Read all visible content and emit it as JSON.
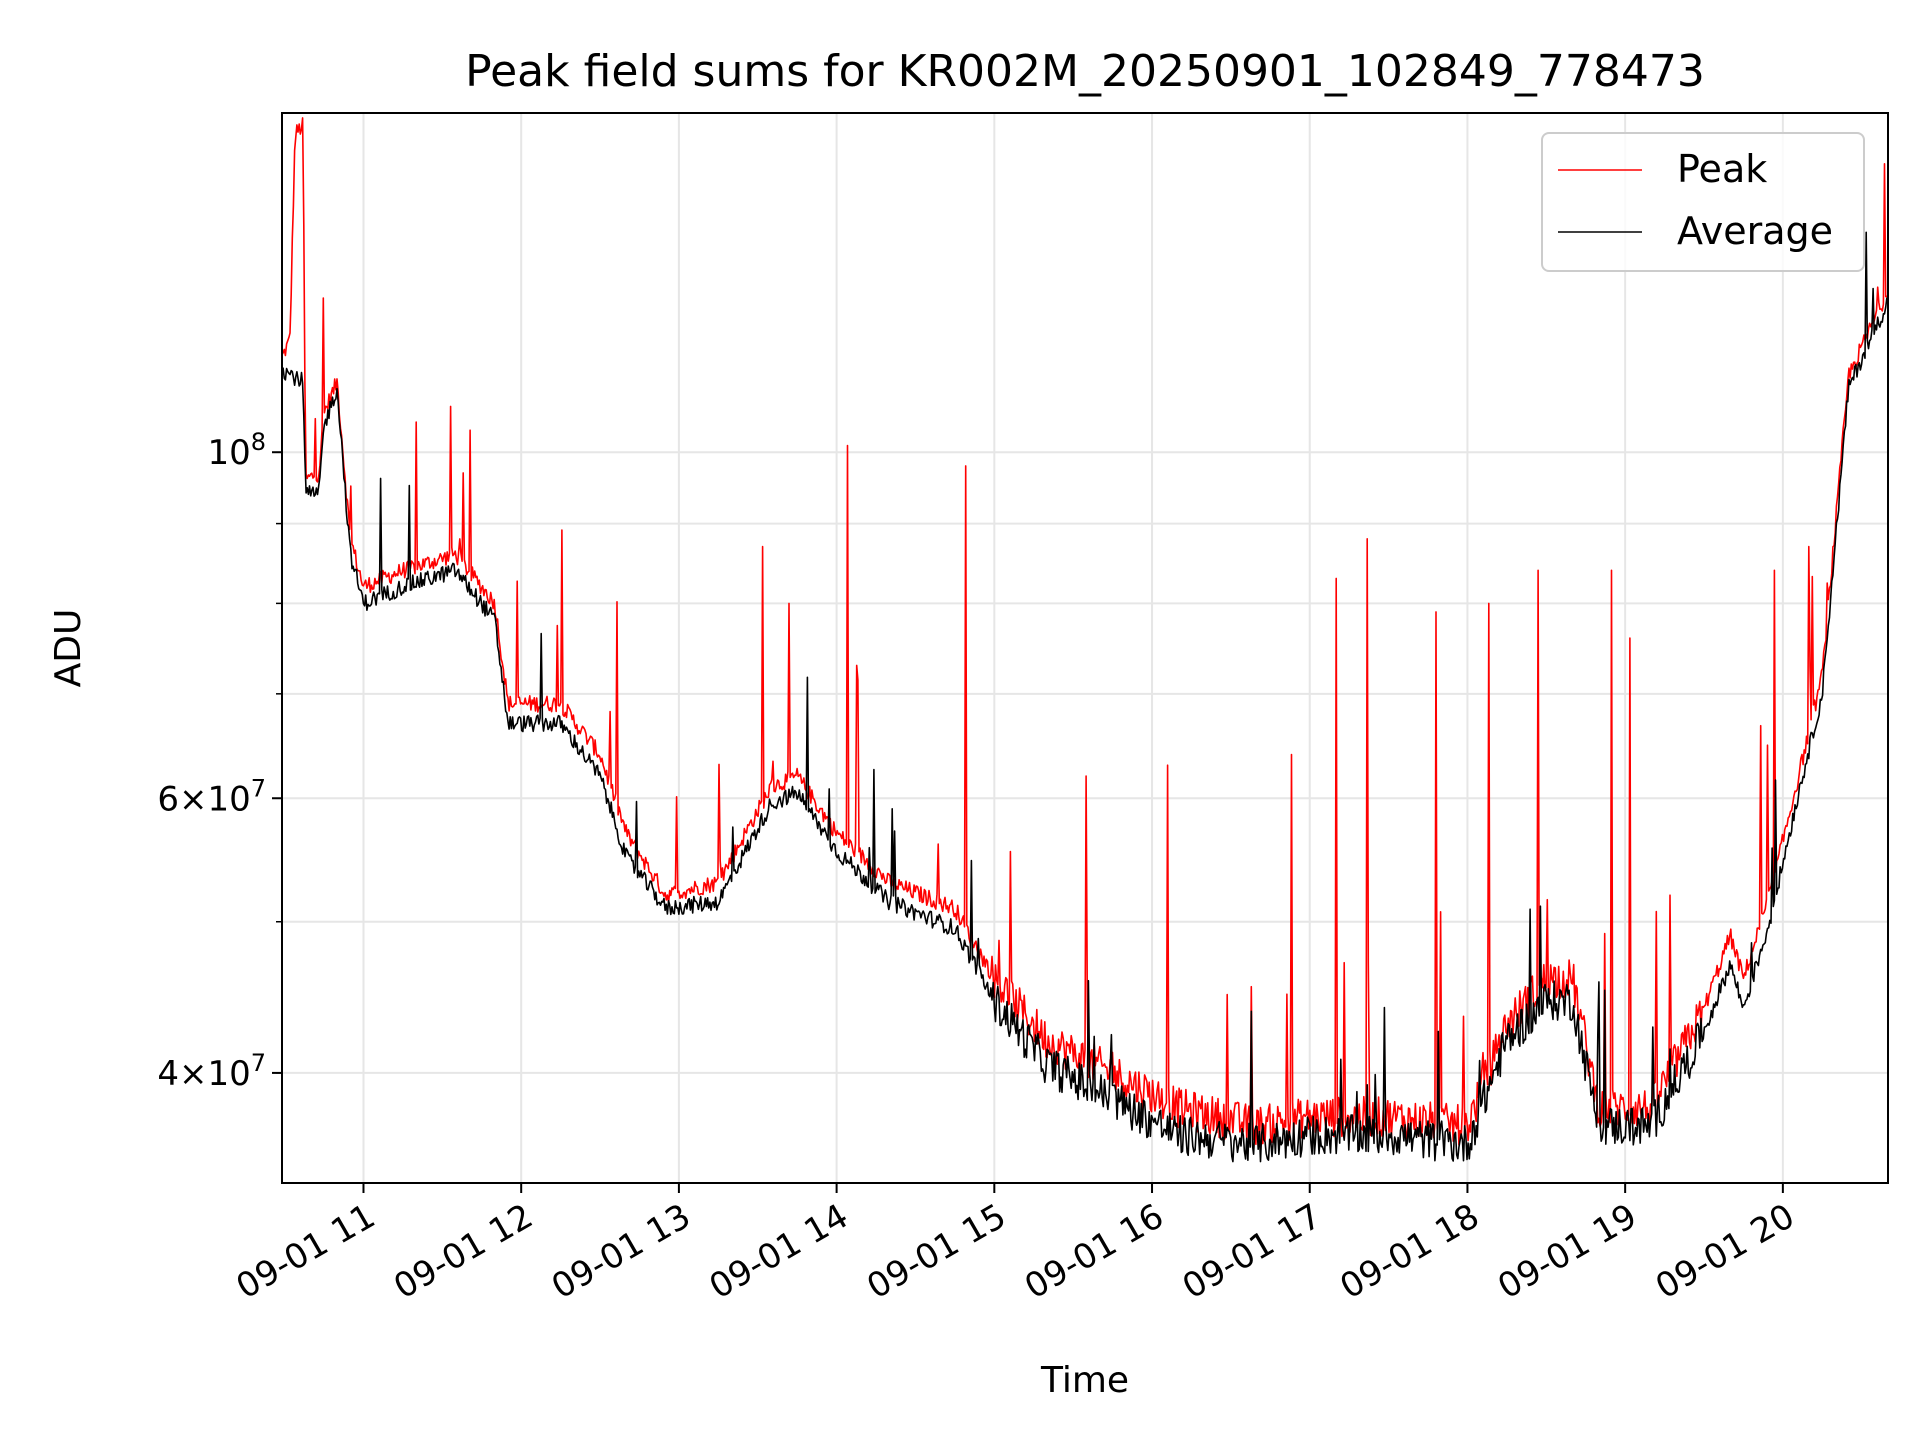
{
  "chart_data": {
    "type": "line",
    "title": "Peak field sums for KR002M_20250901_102849_778473",
    "xlabel": "Time",
    "ylabel": "ADU",
    "yscale": "log",
    "ylim": [
      34000000,
      165000000
    ],
    "xlim": [
      "2025-09-01 10:29:00",
      "2025-09-01 20:40:00"
    ],
    "x_ticks": [
      "09-01 11",
      "09-01 12",
      "09-01 13",
      "09-01 14",
      "09-01 15",
      "09-01 16",
      "09-01 17",
      "09-01 18",
      "09-01 19",
      "09-01 20"
    ],
    "y_ticks": [
      {
        "value": 40000000,
        "mantissa": "4",
        "exponent": "7"
      },
      {
        "value": 60000000,
        "mantissa": "6",
        "exponent": "7"
      },
      {
        "value": 100000000,
        "mantissa": "",
        "exponent": "8"
      }
    ],
    "grid": true,
    "legend_position": "top-right",
    "series": [
      {
        "name": "Peak",
        "color": "#ff0000",
        "points": [
          [
            "2025-09-01 10:29:00",
            115000000
          ],
          [
            "2025-09-01 10:32:00",
            118000000
          ],
          [
            "2025-09-01 10:34:00",
            160000000
          ],
          [
            "2025-09-01 10:37:00",
            162000000
          ],
          [
            "2025-09-01 10:38:00",
            96000000
          ],
          [
            "2025-09-01 10:43:00",
            97000000
          ],
          [
            "2025-09-01 10:45:00",
            106000000
          ],
          [
            "2025-09-01 10:50:00",
            111000000
          ],
          [
            "2025-09-01 10:55:00",
            88000000
          ],
          [
            "2025-09-01 11:00:00",
            82000000
          ],
          [
            "2025-09-01 11:15:00",
            84000000
          ],
          [
            "2025-09-01 11:35:00",
            86000000
          ],
          [
            "2025-09-01 11:50:00",
            80000000
          ],
          [
            "2025-09-01 11:55:00",
            69000000
          ],
          [
            "2025-09-01 12:15:00",
            69000000
          ],
          [
            "2025-09-01 12:30:00",
            64000000
          ],
          [
            "2025-09-01 12:40:00",
            57000000
          ],
          [
            "2025-09-01 12:55:00",
            52000000
          ],
          [
            "2025-09-01 13:15:00",
            53000000
          ],
          [
            "2025-09-01 13:35:00",
            61000000
          ],
          [
            "2025-09-01 13:45:00",
            62000000
          ],
          [
            "2025-09-01 14:00:00",
            57000000
          ],
          [
            "2025-09-01 14:20:00",
            53000000
          ],
          [
            "2025-09-01 14:45:00",
            51000000
          ],
          [
            "2025-09-01 15:00:00",
            46000000
          ],
          [
            "2025-09-01 15:20:00",
            42000000
          ],
          [
            "2025-09-01 15:45:00",
            40000000
          ],
          [
            "2025-09-01 16:10:00",
            38000000
          ],
          [
            "2025-09-01 16:40:00",
            37000000
          ],
          [
            "2025-09-01 17:00:00",
            37500000
          ],
          [
            "2025-09-01 17:30:00",
            37500000
          ],
          [
            "2025-09-01 18:00:00",
            37000000
          ],
          [
            "2025-09-01 18:15:00",
            43000000
          ],
          [
            "2025-09-01 18:30:00",
            46000000
          ],
          [
            "2025-09-01 18:40:00",
            46000000
          ],
          [
            "2025-09-01 18:50:00",
            38000000
          ],
          [
            "2025-09-01 19:10:00",
            38000000
          ],
          [
            "2025-09-01 19:30:00",
            44000000
          ],
          [
            "2025-09-01 19:40:00",
            49000000
          ],
          [
            "2025-09-01 19:45:00",
            46000000
          ],
          [
            "2025-09-01 19:55:00",
            52000000
          ],
          [
            "2025-09-01 20:05:00",
            61000000
          ],
          [
            "2025-09-01 20:15:00",
            72000000
          ],
          [
            "2025-09-01 20:25:00",
            112000000
          ],
          [
            "2025-09-01 20:40:00",
            127000000
          ]
        ],
        "spikes": [
          [
            "2025-09-01 11:33:00",
            107000000
          ],
          [
            "2025-09-01 11:38:00",
            97000000
          ],
          [
            "2025-09-01 13:32:00",
            87000000
          ],
          [
            "2025-09-01 13:42:00",
            80000000
          ],
          [
            "2025-09-01 14:04:00",
            101000000
          ],
          [
            "2025-09-01 14:49:00",
            98000000
          ],
          [
            "2025-09-01 15:35:00",
            62000000
          ],
          [
            "2025-09-01 16:06:00",
            63000000
          ],
          [
            "2025-09-01 16:53:00",
            64000000
          ],
          [
            "2025-09-01 17:10:00",
            83000000
          ],
          [
            "2025-09-01 17:22:00",
            88000000
          ],
          [
            "2025-09-01 17:48:00",
            79000000
          ],
          [
            "2025-09-01 18:08:00",
            80000000
          ],
          [
            "2025-09-01 18:27:00",
            84000000
          ],
          [
            "2025-09-01 18:55:00",
            84000000
          ],
          [
            "2025-09-01 19:02:00",
            76000000
          ],
          [
            "2025-09-01 19:57:00",
            84000000
          ],
          [
            "2025-09-01 20:10:00",
            87000000
          ]
        ]
      },
      {
        "name": "Average",
        "color": "#000000",
        "points": [
          [
            "2025-09-01 10:29:00",
            113000000
          ],
          [
            "2025-09-01 10:37:00",
            111000000
          ],
          [
            "2025-09-01 10:38:00",
            94000000
          ],
          [
            "2025-09-01 10:43:00",
            94000000
          ],
          [
            "2025-09-01 10:45:00",
            104000000
          ],
          [
            "2025-09-01 10:50:00",
            110000000
          ],
          [
            "2025-09-01 10:55:00",
            86000000
          ],
          [
            "2025-09-01 11:00:00",
            80000000
          ],
          [
            "2025-09-01 11:15:00",
            82000000
          ],
          [
            "2025-09-01 11:35:00",
            84000000
          ],
          [
            "2025-09-01 11:50:00",
            78000000
          ],
          [
            "2025-09-01 11:55:00",
            67000000
          ],
          [
            "2025-09-01 12:15:00",
            67000000
          ],
          [
            "2025-09-01 12:30:00",
            62000000
          ],
          [
            "2025-09-01 12:40:00",
            55000000
          ],
          [
            "2025-09-01 12:55:00",
            51000000
          ],
          [
            "2025-09-01 13:15:00",
            51500000
          ],
          [
            "2025-09-01 13:35:00",
            59500000
          ],
          [
            "2025-09-01 13:45:00",
            60500000
          ],
          [
            "2025-09-01 14:00:00",
            55500000
          ],
          [
            "2025-09-01 14:20:00",
            51500000
          ],
          [
            "2025-09-01 14:45:00",
            49500000
          ],
          [
            "2025-09-01 15:00:00",
            44500000
          ],
          [
            "2025-09-01 15:20:00",
            40500000
          ],
          [
            "2025-09-01 15:45:00",
            38500000
          ],
          [
            "2025-09-01 16:10:00",
            36500000
          ],
          [
            "2025-09-01 16:40:00",
            36000000
          ],
          [
            "2025-09-01 17:00:00",
            36500000
          ],
          [
            "2025-09-01 17:30:00",
            36500000
          ],
          [
            "2025-09-01 18:00:00",
            36000000
          ],
          [
            "2025-09-01 18:15:00",
            42000000
          ],
          [
            "2025-09-01 18:30:00",
            44500000
          ],
          [
            "2025-09-01 18:40:00",
            44500000
          ],
          [
            "2025-09-01 18:50:00",
            37000000
          ],
          [
            "2025-09-01 19:10:00",
            37000000
          ],
          [
            "2025-09-01 19:30:00",
            42500000
          ],
          [
            "2025-09-01 19:40:00",
            47000000
          ],
          [
            "2025-09-01 19:45:00",
            44000000
          ],
          [
            "2025-09-01 19:55:00",
            50000000
          ],
          [
            "2025-09-01 20:05:00",
            59500000
          ],
          [
            "2025-09-01 20:15:00",
            70000000
          ],
          [
            "2025-09-01 20:25:00",
            110000000
          ],
          [
            "2025-09-01 20:40:00",
            125000000
          ]
        ]
      }
    ]
  }
}
